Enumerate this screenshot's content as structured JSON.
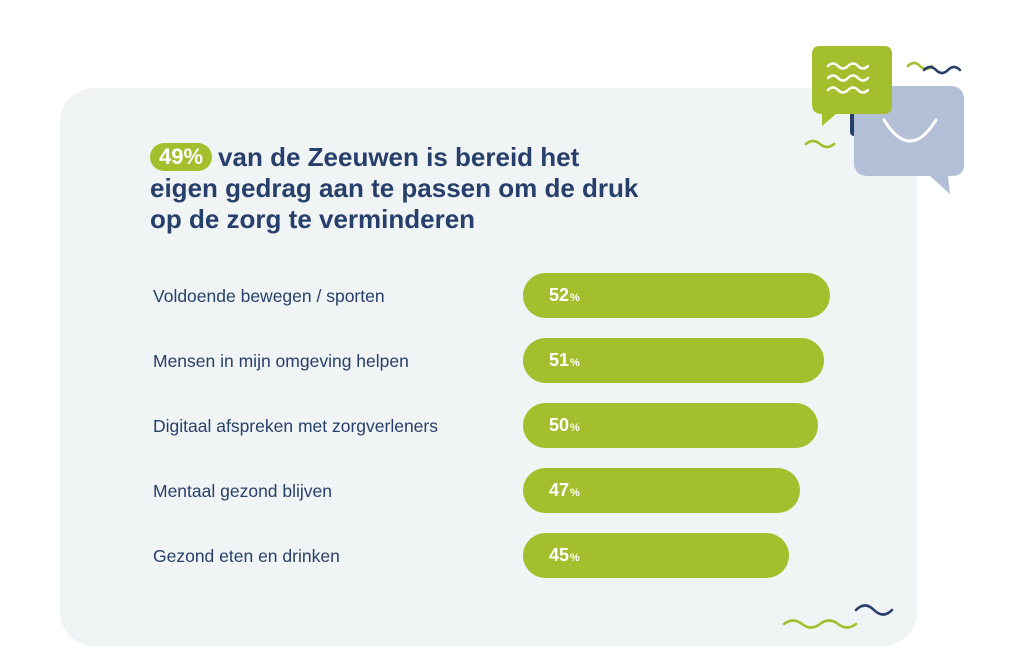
{
  "headline": {
    "highlight": "49%",
    "line1": "van de Zeeuwen is bereid het",
    "line2": "eigen gedrag aan te passen om de druk",
    "line3": "op de zorg te verminderen"
  },
  "unit": "%",
  "colors": {
    "accent": "#a3bf2e",
    "navy": "#27406b",
    "card": "#f1f4f4",
    "bubble_back": "#b3bfd6"
  },
  "icons": [
    "chat-bubbles-icon",
    "wave-squiggle-icon"
  ],
  "chart_data": {
    "type": "bar",
    "orientation": "horizontal",
    "categories": [
      "Voldoende bewegen / sporten",
      "Mensen in mijn omgeving helpen",
      "Digitaal afspreken met zorgverleners",
      "Mentaal gezond blijven",
      "Gezond eten en drinken"
    ],
    "values": [
      52,
      51,
      50,
      47,
      45
    ],
    "value_labels": [
      "52",
      "51",
      "50",
      "47",
      "45"
    ]
  }
}
